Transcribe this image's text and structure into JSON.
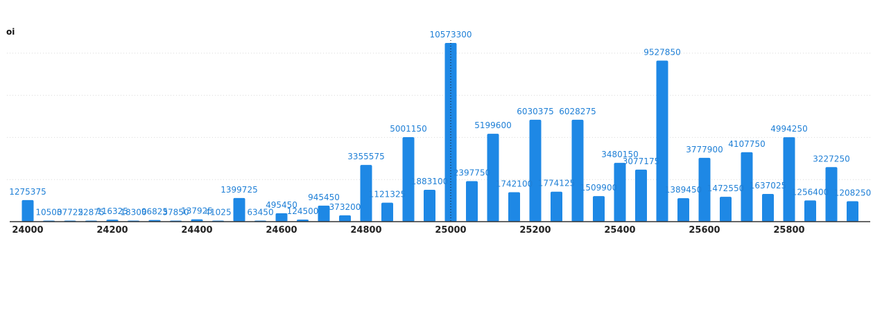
{
  "chart_data": {
    "type": "bar",
    "ylabel": "oi",
    "xlabel": "",
    "title": "",
    "color": "#1e88e5",
    "label_color": "#1e7fd6",
    "x": [
      24000,
      24050,
      24100,
      24150,
      24200,
      24250,
      24300,
      24350,
      24400,
      24450,
      24500,
      24550,
      24600,
      24650,
      24700,
      24750,
      24800,
      24850,
      24900,
      24950,
      25000,
      25050,
      25100,
      25150,
      25200,
      25250,
      25300,
      25350,
      25400,
      25450,
      25500,
      25550,
      25600,
      25650,
      25700,
      25750,
      25800,
      25850,
      25900,
      25950
    ],
    "values": [
      1275375,
      10500,
      37725,
      22875,
      116325,
      18300,
      96825,
      37850,
      137925,
      41025,
      1399725,
      63450,
      495450,
      124500,
      945450,
      373200,
      3355575,
      1121325,
      5001150,
      1883100,
      10573300,
      2397750,
      5199600,
      1742100,
      6030375,
      1774125,
      6028275,
      1509900,
      3480150,
      3077175,
      9527850,
      1389450,
      3777900,
      1472550,
      4107750,
      1637025,
      4994250,
      1256400,
      3227250,
      1208250
    ],
    "labels": [
      "1275375",
      "10500",
      "37725",
      "22875",
      "116325",
      "18300",
      "96825",
      "37850",
      "137925",
      "41025",
      "1399725",
      "63450",
      "495450",
      "124500",
      "945450",
      "373200",
      "3355575",
      "1121325",
      "5001150",
      "1883100",
      "10573300",
      "2397750",
      "5199600",
      "1742100",
      "6030375",
      "1774125",
      "6028275",
      "1509900",
      "3480150",
      "3077175",
      "9527850",
      "1389450",
      "3777900",
      "1472550",
      "4107750",
      "1637025",
      "4994250",
      "1256400",
      "3227250",
      "1208250"
    ],
    "x_ticks": [
      "24000",
      "24200",
      "24400",
      "24600",
      "24800",
      "25000",
      "25200",
      "25400",
      "25600",
      "25800"
    ],
    "ylim": [
      0,
      10573300
    ],
    "grid": true,
    "gridlines": 4,
    "cursor_at": "25000"
  }
}
